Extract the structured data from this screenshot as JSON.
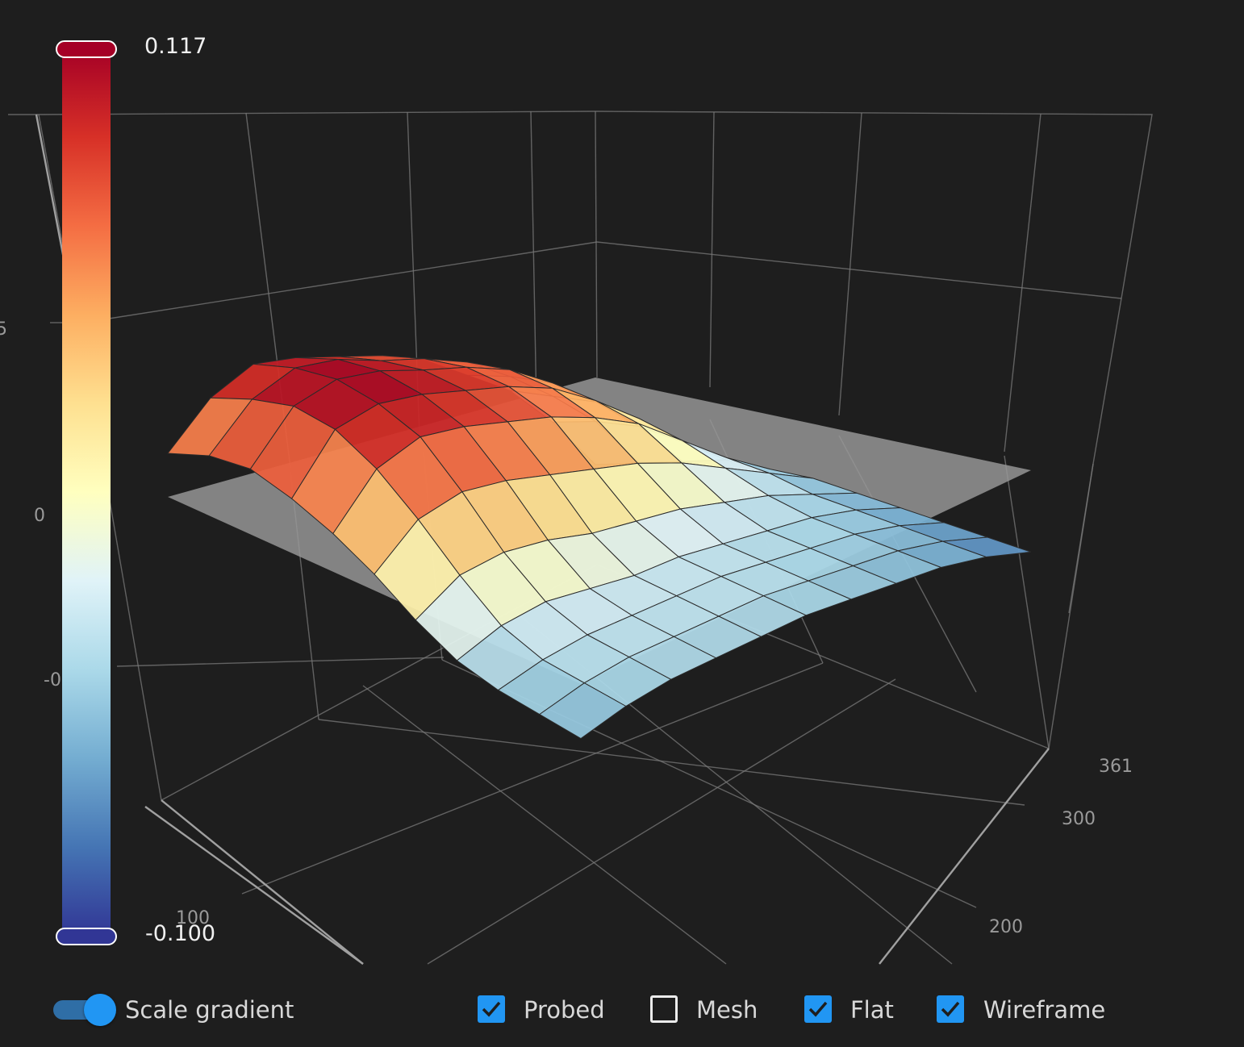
{
  "chart_data": {
    "type": "surface3d",
    "colorscale": {
      "max_label": "0.117",
      "min_label": "-0.100",
      "max": 0.117,
      "min": -0.1,
      "stops": [
        "#a50026",
        "#d73027",
        "#f46d43",
        "#fdae61",
        "#fee090",
        "#ffffbf",
        "#e0f3f8",
        "#abd9e9",
        "#74add1",
        "#4575b4",
        "#313695"
      ]
    },
    "z_ticks": [
      "5",
      "0",
      "-0"
    ],
    "x_ticks": [
      "100"
    ],
    "y_ticks": [
      "361",
      "300",
      "200"
    ],
    "x_range": [
      0,
      361
    ],
    "y_range": [
      0,
      361
    ],
    "z_grid": [
      [
        0.04,
        0.08,
        0.1,
        0.095,
        0.085,
        0.075,
        0.06,
        0.035,
        0.01,
        -0.03,
        -0.08
      ],
      [
        0.055,
        0.095,
        0.112,
        0.108,
        0.095,
        0.085,
        0.07,
        0.045,
        0.015,
        -0.02,
        -0.07
      ],
      [
        0.06,
        0.105,
        0.117,
        0.112,
        0.1,
        0.09,
        0.075,
        0.05,
        0.02,
        -0.015,
        -0.06
      ],
      [
        0.05,
        0.1,
        0.11,
        0.105,
        0.095,
        0.085,
        0.07,
        0.045,
        0.015,
        -0.02,
        -0.05
      ],
      [
        0.035,
        0.08,
        0.095,
        0.09,
        0.08,
        0.07,
        0.055,
        0.035,
        0.005,
        -0.025,
        -0.05
      ],
      [
        0.015,
        0.05,
        0.06,
        0.055,
        0.045,
        0.035,
        0.025,
        0.01,
        -0.01,
        -0.03,
        -0.05
      ],
      [
        -0.01,
        0.015,
        0.02,
        0.015,
        0.005,
        0.0,
        -0.005,
        -0.015,
        -0.025,
        -0.04,
        -0.055
      ],
      [
        -0.03,
        -0.015,
        -0.01,
        -0.015,
        -0.02,
        -0.02,
        -0.025,
        -0.03,
        -0.035,
        -0.045,
        -0.06
      ],
      [
        -0.04,
        -0.03,
        -0.025,
        -0.025,
        -0.025,
        -0.025,
        -0.03,
        -0.035,
        -0.04,
        -0.05,
        -0.065
      ],
      [
        -0.045,
        -0.035,
        -0.03,
        -0.03,
        -0.03,
        -0.03,
        -0.035,
        -0.04,
        -0.045,
        -0.055,
        -0.07
      ],
      [
        -0.05,
        -0.04,
        -0.035,
        -0.035,
        -0.035,
        -0.035,
        -0.04,
        -0.045,
        -0.05,
        -0.06,
        -0.075
      ]
    ],
    "grid": "on"
  },
  "controls": {
    "scale_gradient_label": "Scale gradient",
    "scale_gradient_on": true,
    "probed_label": "Probed",
    "probed_checked": true,
    "mesh_label": "Mesh",
    "mesh_checked": false,
    "flat_label": "Flat",
    "flat_checked": true,
    "wireframe_label": "Wireframe",
    "wireframe_checked": true
  }
}
